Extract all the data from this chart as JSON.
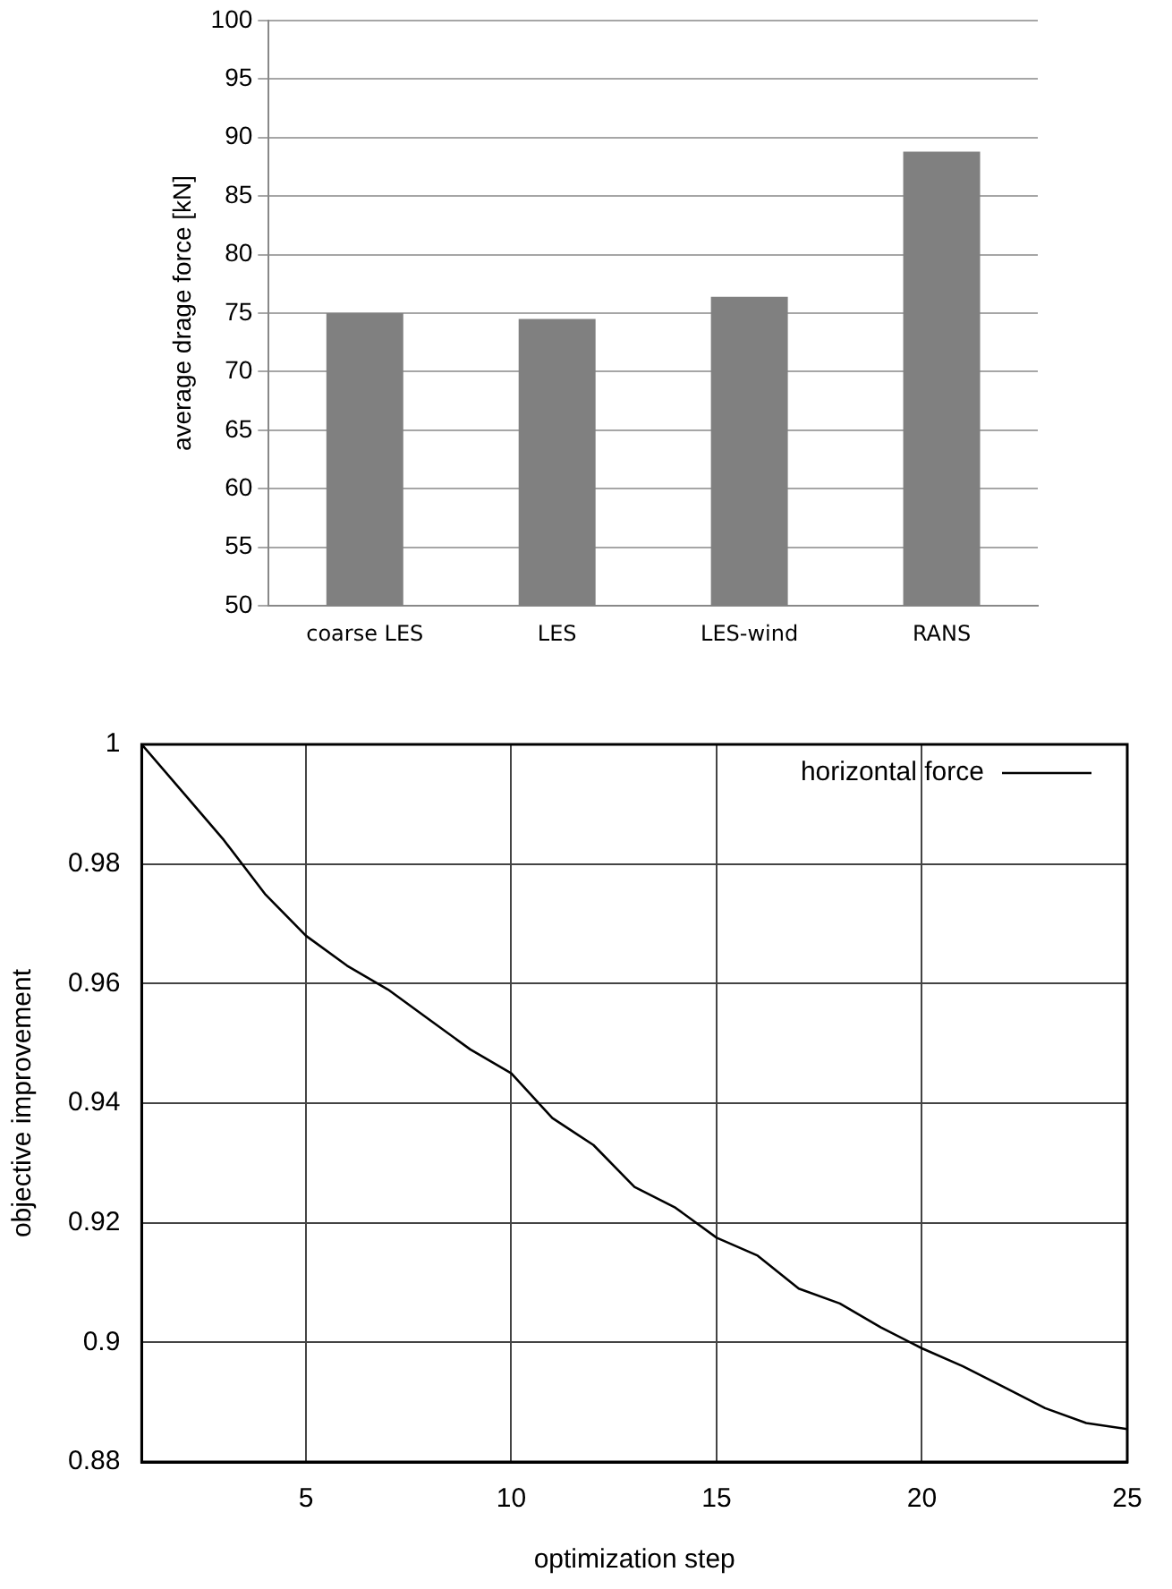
{
  "chart_data": [
    {
      "type": "bar",
      "ylabel": "average drage force [kN]",
      "categories": [
        "coarse LES",
        "LES",
        "LES-wind",
        "RANS"
      ],
      "values": [
        75,
        74.5,
        76.4,
        88.8
      ],
      "color": "#808080",
      "ylim": [
        50,
        100
      ],
      "yticks": [
        50,
        55,
        60,
        65,
        70,
        75,
        80,
        85,
        90,
        95,
        100
      ],
      "grid": "y"
    },
    {
      "type": "line",
      "xlabel": "optimization step",
      "ylabel": "objective improvement",
      "x": [
        1,
        2,
        3,
        4,
        5,
        6,
        7,
        8,
        9,
        10,
        11,
        12,
        13,
        14,
        15,
        16,
        17,
        18,
        19,
        20,
        21,
        22,
        23,
        24,
        25
      ],
      "series": [
        {
          "name": "horizontal force",
          "color": "#000000",
          "values": [
            1.0,
            0.992,
            0.984,
            0.975,
            0.968,
            0.963,
            0.959,
            0.954,
            0.949,
            0.945,
            0.9375,
            0.933,
            0.926,
            0.9225,
            0.9175,
            0.9145,
            0.909,
            0.9065,
            0.9025,
            0.899,
            0.896,
            0.8925,
            0.889,
            0.8865,
            0.8855
          ]
        }
      ],
      "xlim": [
        1,
        25
      ],
      "xticks": [
        5,
        10,
        15,
        20,
        25
      ],
      "ylim": [
        0.88,
        1
      ],
      "yticks": [
        0.88,
        0.9,
        0.92,
        0.94,
        0.96,
        0.98,
        1
      ],
      "grid": true,
      "legend": "top right",
      "line_style": "solid",
      "marker": "none"
    }
  ]
}
